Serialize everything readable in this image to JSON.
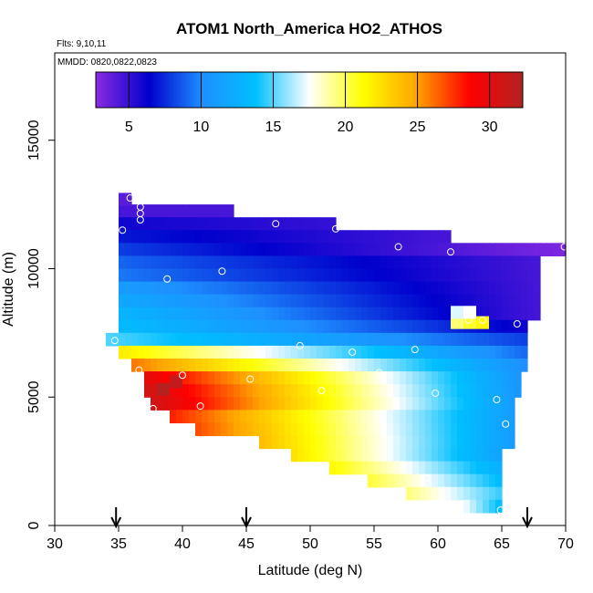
{
  "chart_data": {
    "type": "heatmap",
    "title": "ATOM1 North_America HO2_ATHOS",
    "flights_label": "Flts: 9,10,11",
    "mmdd_label": "MMDD: 0820,0822,0823",
    "xlabel": "Latitude (deg N)",
    "ylabel": "Altitude (m)",
    "xlim": [
      30,
      70
    ],
    "ylim": [
      0,
      18400
    ],
    "x_ticks": [
      "30",
      "35",
      "40",
      "45",
      "50",
      "55",
      "60",
      "65",
      "70"
    ],
    "y_ticks": [
      "0",
      "5000",
      "10000",
      "15000"
    ],
    "colorbar": {
      "range": [
        2.7,
        32.3
      ],
      "ticks": [
        "5",
        "10",
        "15",
        "20",
        "25",
        "30"
      ],
      "colors": [
        "#8a2be2",
        "#0000cd",
        "#1e90ff",
        "#00bfff",
        "#ffffff",
        "#ffff00",
        "#ffa500",
        "#ff0000",
        "#b22222"
      ]
    },
    "arrow_latitudes": [
      34.8,
      45,
      67
    ],
    "grid": false,
    "legend": "colorbar at top",
    "bands": [
      {
        "alt": [
          12500,
          12900
        ],
        "lat": [
          35.0,
          36.0
        ],
        "v_start": 4.0,
        "v_end": 4.0
      },
      {
        "alt": [
          12000,
          12500
        ],
        "lat": [
          35.0,
          44.0
        ],
        "v_start": 4.5,
        "v_end": 4.5
      },
      {
        "alt": [
          11500,
          12000
        ],
        "lat": [
          35.0,
          52.0
        ],
        "v_start": 6.0,
        "v_end": 5.0
      },
      {
        "alt": [
          11000,
          11500
        ],
        "lat": [
          35.0,
          61.0
        ],
        "v_start": 7.0,
        "v_end": 4.5
      },
      {
        "alt": [
          10500,
          11000
        ],
        "lat": [
          35.0,
          70.0
        ],
        "v_start": 8.0,
        "v_end": 3.0
      },
      {
        "alt": [
          10000,
          10500
        ],
        "lat": [
          35.0,
          68.0
        ],
        "v_start": 9.0,
        "v_end": 4.5
      },
      {
        "alt": [
          9500,
          10000
        ],
        "lat": [
          35.0,
          68.0
        ],
        "v_start": 9.5,
        "v_end": 4.5
      },
      {
        "alt": [
          9000,
          9500
        ],
        "lat": [
          35.0,
          68.0
        ],
        "v_start": 11.0,
        "v_end": 4.5
      },
      {
        "alt": [
          8500,
          9000
        ],
        "lat": [
          35.0,
          68.0
        ],
        "v_start": 12.0,
        "v_end": 4.5
      },
      {
        "alt": [
          8000,
          8500
        ],
        "lat": [
          35.0,
          68.0
        ],
        "v_start": 13.0,
        "v_end": 4.5
      },
      {
        "alt": [
          7500,
          8000
        ],
        "lat": [
          35.0,
          67.0
        ],
        "v_start": 13.5,
        "v_end": 6.0
      },
      {
        "alt": [
          7000,
          7500
        ],
        "lat": [
          34.0,
          67.0
        ],
        "v_start": 15.0,
        "v_end": 8.0
      },
      {
        "alt": [
          6500,
          7000
        ],
        "lat": [
          35.0,
          67.0
        ],
        "v_start": 22.0,
        "v_end": 9.0
      },
      {
        "alt": [
          6000,
          6500
        ],
        "lat": [
          36.0,
          67.0
        ],
        "v_start": 26.0,
        "v_end": 10.0
      },
      {
        "alt": [
          5500,
          6000
        ],
        "lat": [
          37.0,
          66.5
        ],
        "v_start": 30.0,
        "v_end": 10.5
      },
      {
        "alt": [
          5000,
          5500
        ],
        "lat": [
          37.0,
          66.5
        ],
        "v_start": 31.0,
        "v_end": 10.5
      },
      {
        "alt": [
          4500,
          5000
        ],
        "lat": [
          37.5,
          66.0
        ],
        "v_start": 31.0,
        "v_end": 11.0
      },
      {
        "alt": [
          4000,
          4500
        ],
        "lat": [
          39.0,
          66.0
        ],
        "v_start": 28.0,
        "v_end": 11.0
      },
      {
        "alt": [
          3500,
          4000
        ],
        "lat": [
          41.0,
          66.0
        ],
        "v_start": 27.0,
        "v_end": 11.0
      },
      {
        "alt": [
          3000,
          3500
        ],
        "lat": [
          46.0,
          66.0
        ],
        "v_start": 24.0,
        "v_end": 11.0
      },
      {
        "alt": [
          2500,
          3000
        ],
        "lat": [
          48.5,
          65.0
        ],
        "v_start": 22.5,
        "v_end": 11.5
      },
      {
        "alt": [
          2000,
          2500
        ],
        "lat": [
          51.5,
          65.0
        ],
        "v_start": 21.5,
        "v_end": 12.5
      },
      {
        "alt": [
          1500,
          2000
        ],
        "lat": [
          54.5,
          65.0
        ],
        "v_start": 20.5,
        "v_end": 13.5
      },
      {
        "alt": [
          1000,
          1500
        ],
        "lat": [
          57.5,
          65.0
        ],
        "v_start": 19.5,
        "v_end": 14.5
      },
      {
        "alt": [
          500,
          1000
        ],
        "lat": [
          62.0,
          65.0
        ],
        "v_start": 17.5,
        "v_end": 13.5
      }
    ],
    "cells": [
      {
        "lat": 61.0,
        "alt": 7900,
        "v": 19.5
      },
      {
        "lat": 62.0,
        "alt": 7900,
        "v": 20.5
      },
      {
        "lat": 63.0,
        "alt": 7900,
        "v": 21.5
      },
      {
        "lat": 61.0,
        "alt": 8300,
        "v": 17.0
      },
      {
        "lat": 62.0,
        "alt": 8300,
        "v": 17.5
      },
      {
        "lat": 38.0,
        "alt": 5300,
        "v": 32.0
      },
      {
        "lat": 39.0,
        "alt": 5600,
        "v": 31.5
      },
      {
        "lat": 35.0,
        "alt": 12700,
        "v": 4.0
      }
    ],
    "observations": [
      {
        "lat": 35.9,
        "alt": 12750
      },
      {
        "lat": 36.7,
        "alt": 12400
      },
      {
        "lat": 36.7,
        "alt": 12150
      },
      {
        "lat": 36.7,
        "alt": 11900
      },
      {
        "lat": 35.3,
        "alt": 11500
      },
      {
        "lat": 47.3,
        "alt": 11750
      },
      {
        "lat": 52.0,
        "alt": 11550
      },
      {
        "lat": 56.9,
        "alt": 10850
      },
      {
        "lat": 61.0,
        "alt": 10650
      },
      {
        "lat": 69.9,
        "alt": 10850
      },
      {
        "lat": 38.8,
        "alt": 9600
      },
      {
        "lat": 43.1,
        "alt": 9900
      },
      {
        "lat": 62.4,
        "alt": 8000
      },
      {
        "lat": 63.5,
        "alt": 8000
      },
      {
        "lat": 66.2,
        "alt": 7850
      },
      {
        "lat": 34.7,
        "alt": 7200
      },
      {
        "lat": 49.2,
        "alt": 7000
      },
      {
        "lat": 53.3,
        "alt": 6750
      },
      {
        "lat": 58.2,
        "alt": 6850
      },
      {
        "lat": 36.6,
        "alt": 6050
      },
      {
        "lat": 40.0,
        "alt": 5850
      },
      {
        "lat": 45.3,
        "alt": 5700
      },
      {
        "lat": 55.4,
        "alt": 5950
      },
      {
        "lat": 50.9,
        "alt": 5250
      },
      {
        "lat": 59.8,
        "alt": 5150
      },
      {
        "lat": 64.6,
        "alt": 4900
      },
      {
        "lat": 41.4,
        "alt": 4650
      },
      {
        "lat": 37.7,
        "alt": 4550
      },
      {
        "lat": 65.3,
        "alt": 3950
      },
      {
        "lat": 59.1,
        "alt": 1850
      },
      {
        "lat": 64.9,
        "alt": 600
      }
    ]
  }
}
